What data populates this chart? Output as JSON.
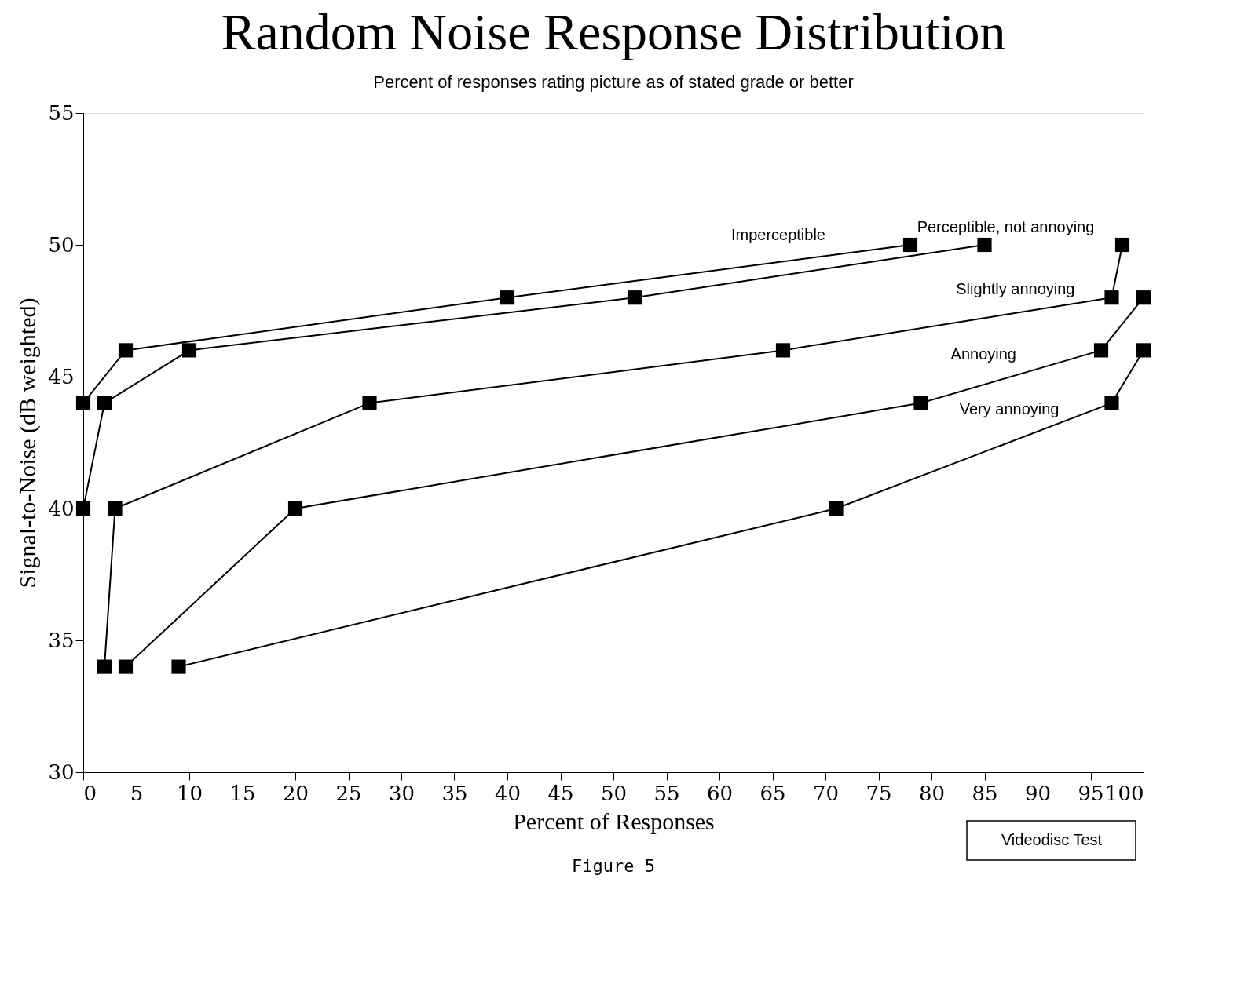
{
  "chart_data": {
    "type": "line",
    "title": "Random Noise Response Distribution",
    "subtitle": "Percent of responses rating picture as of stated grade or better",
    "xlabel": "Percent of Responses",
    "ylabel": "Signal-to-Noise (dB weighted)",
    "xlim": [
      0,
      100
    ],
    "xticks": [
      0,
      5,
      10,
      15,
      20,
      25,
      30,
      35,
      40,
      45,
      50,
      55,
      60,
      65,
      70,
      75,
      80,
      85,
      90,
      95,
      100
    ],
    "ylim": [
      30,
      55
    ],
    "yticks": [
      30,
      35,
      40,
      45,
      50,
      55
    ],
    "series": [
      {
        "name": "Very annoying",
        "color": "#000000",
        "x": [
          9,
          71,
          97,
          100
        ],
        "values": [
          34,
          40,
          44,
          46
        ]
      },
      {
        "name": "Annoying",
        "color": "#000000",
        "x": [
          4,
          20,
          79,
          96,
          100
        ],
        "values": [
          34,
          40,
          44,
          46,
          48
        ]
      },
      {
        "name": "Slightly annoying",
        "color": "#000000",
        "x": [
          2,
          3,
          27,
          66,
          97,
          98
        ],
        "values": [
          34,
          40,
          44,
          46,
          48,
          50
        ]
      },
      {
        "name": "Perceptible, not annoying",
        "color": "#000000",
        "x": [
          0,
          2,
          10,
          52,
          85
        ],
        "values": [
          40,
          44,
          46,
          48,
          50
        ]
      },
      {
        "name": "Imperceptible",
        "color": "#000000",
        "x": [
          0,
          4,
          40,
          78
        ],
        "values": [
          44,
          46,
          48,
          50
        ]
      }
    ],
    "marker": "square",
    "line_style": "solid",
    "grid": false,
    "legend": false,
    "annotations": [
      "Figure 5",
      "Videodisc Test"
    ]
  }
}
